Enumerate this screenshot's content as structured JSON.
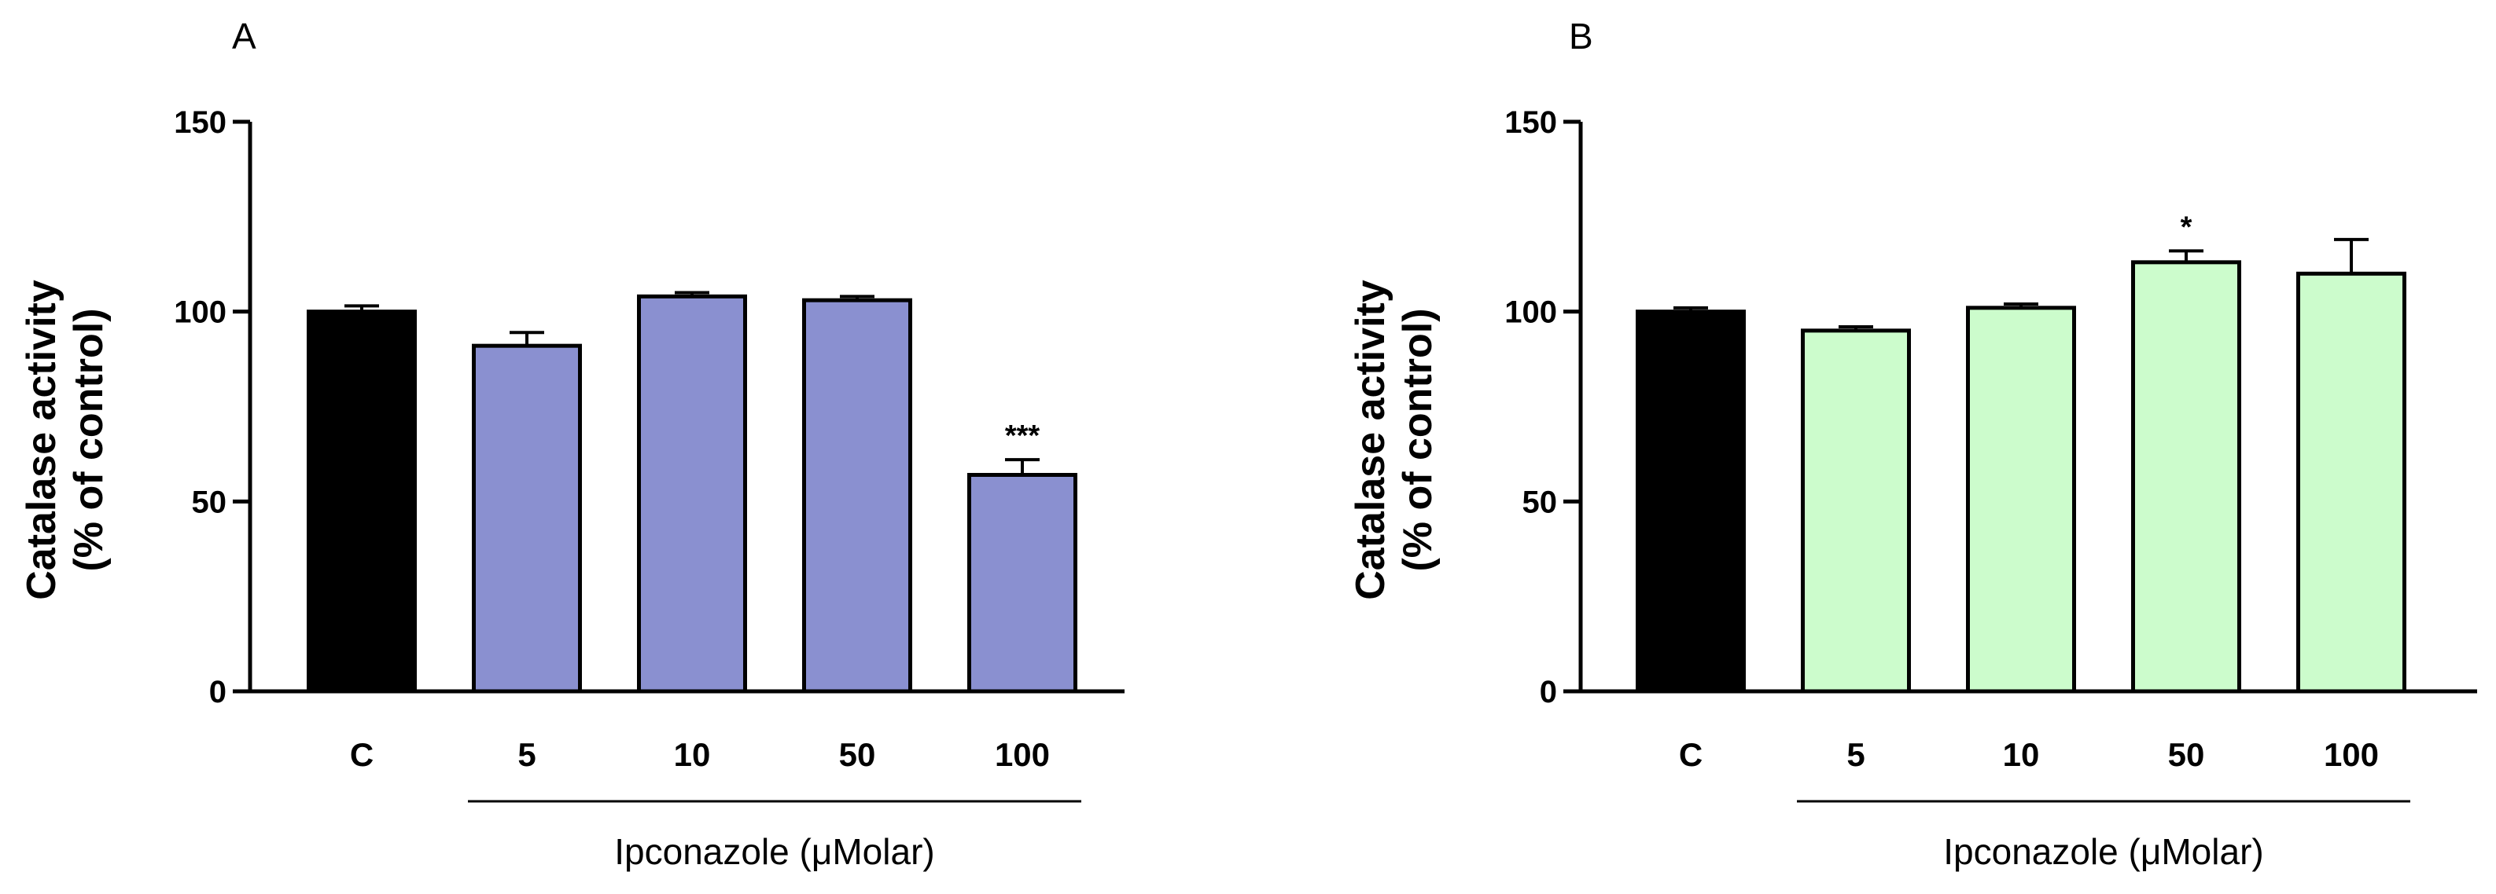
{
  "chart_data": [
    {
      "type": "bar",
      "panel_label": "A",
      "title": "",
      "ylabel_line1": "Catalase activity",
      "ylabel_line2": "(% of control)",
      "xlabel": "Ipconazole (μMolar)",
      "categories": [
        "C",
        "5",
        "10",
        "50",
        "100"
      ],
      "values": [
        100,
        91,
        104,
        103,
        57
      ],
      "errors": [
        1.5,
        3.5,
        1.0,
        1.0,
        4.0
      ],
      "significance": [
        "",
        "",
        "",
        "",
        "***"
      ],
      "colors": [
        "#000000",
        "#8a90d0",
        "#8a90d0",
        "#8a90d0",
        "#8a90d0"
      ],
      "ylim": [
        0,
        150
      ],
      "yticks": [
        0,
        50,
        100,
        150
      ],
      "treatment_bracket": [
        "5",
        "100"
      ]
    },
    {
      "type": "bar",
      "panel_label": "B",
      "title": "",
      "ylabel_line1": "Catalase activity",
      "ylabel_line2": "(% of control)",
      "xlabel": "Ipconazole (μMolar)",
      "categories": [
        "C",
        "5",
        "10",
        "50",
        "100"
      ],
      "values": [
        100,
        95,
        101,
        113,
        110
      ],
      "errors": [
        1.0,
        1.0,
        1.0,
        3.0,
        9.0
      ],
      "significance": [
        "",
        "",
        "",
        "*",
        ""
      ],
      "colors": [
        "#000000",
        "#ccfccc",
        "#ccfccc",
        "#ccfccc",
        "#ccfccc"
      ],
      "ylim": [
        0,
        150
      ],
      "yticks": [
        0,
        50,
        100,
        150
      ],
      "treatment_bracket": [
        "5",
        "100"
      ]
    }
  ]
}
